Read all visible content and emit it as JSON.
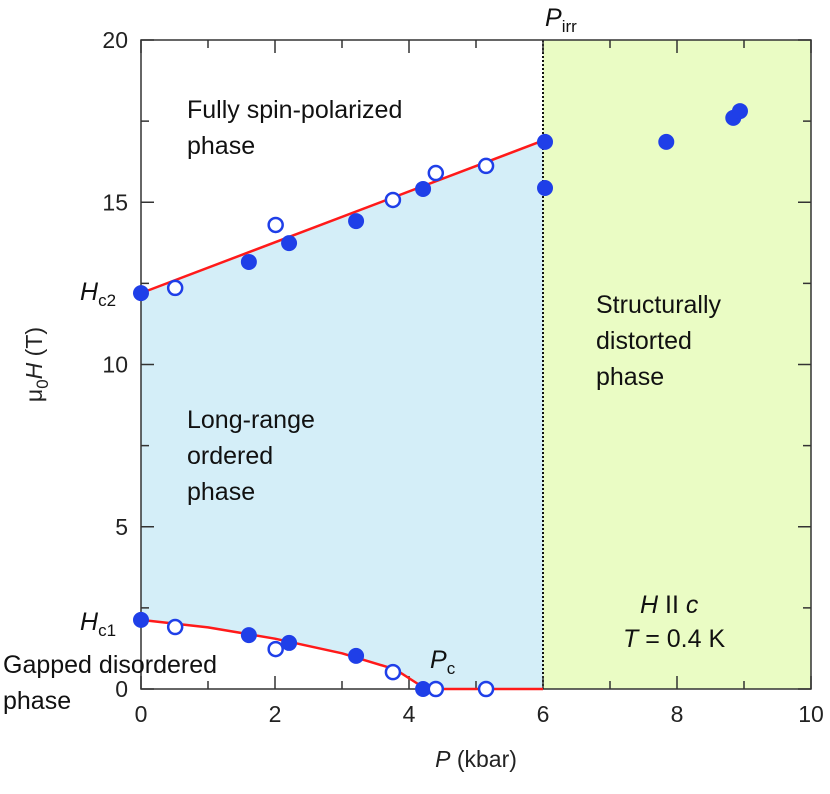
{
  "chart_data": {
    "type": "scatter",
    "title": "",
    "xlabel": {
      "italic": "P",
      "rest": " (kbar)"
    },
    "ylabel": {
      "base": "μ",
      "sub": "0",
      "italic": "H",
      "rest": " (T)"
    },
    "xlim": [
      0,
      10
    ],
    "ylim": [
      0,
      20
    ],
    "xticks": [
      0,
      2,
      4,
      6,
      8,
      10
    ],
    "yticks": [
      0,
      5,
      10,
      15,
      20
    ],
    "grid": false,
    "colors": {
      "points": "#1f3fe8",
      "line": "#ff1a1a",
      "ordered_fill": "#d4eef8",
      "distorted_fill": "#eafcc4"
    },
    "series": [
      {
        "marker": "filled",
        "x": [
          0,
          1.61,
          2.21,
          3.21,
          4.21,
          6.03,
          6.03,
          7.84,
          8.84,
          8.94,
          0,
          1.61,
          2.21,
          3.21,
          4.21
        ],
        "y": [
          12.2,
          13.16,
          13.74,
          14.42,
          15.41,
          16.86,
          15.44,
          16.86,
          17.6,
          17.81,
          2.13,
          1.66,
          1.42,
          1.02,
          0.0
        ]
      },
      {
        "marker": "open",
        "x": [
          0.51,
          2.01,
          3.76,
          4.4,
          5.15,
          0.51,
          2.01,
          3.76,
          4.4,
          5.15
        ],
        "y": [
          12.36,
          14.3,
          15.07,
          15.9,
          16.12,
          1.91,
          1.23,
          0.52,
          0.0,
          0.0
        ]
      }
    ],
    "lines": {
      "hc2": {
        "x": [
          0,
          6
        ],
        "y": [
          12.2,
          16.9
        ]
      },
      "hc1": {
        "x": [
          0,
          1,
          2,
          3,
          3.8,
          4.1,
          4.25,
          6
        ],
        "y": [
          2.13,
          1.9,
          1.55,
          1.1,
          0.6,
          0.2,
          0,
          0
        ]
      }
    },
    "p_irr": 6,
    "annotations": {
      "fully": [
        "Fully spin-polarized",
        "phase"
      ],
      "long": [
        "Long-range",
        "ordered",
        "phase"
      ],
      "struct": [
        "Structurally",
        "distorted",
        "phase"
      ],
      "gapped": [
        "Gapped disordered",
        "phase"
      ],
      "hc2": {
        "main": "H",
        "sub": "c2"
      },
      "hc1": {
        "main": "H",
        "sub": "c1"
      },
      "pc": {
        "main": "P",
        "sub": "c"
      },
      "pirr": {
        "main": "P",
        "sub": "irr"
      },
      "field": {
        "a": "H",
        "b": " II ",
        "c": "c"
      },
      "temp": {
        "a": "T",
        "b": " = 0.4 K"
      }
    }
  }
}
